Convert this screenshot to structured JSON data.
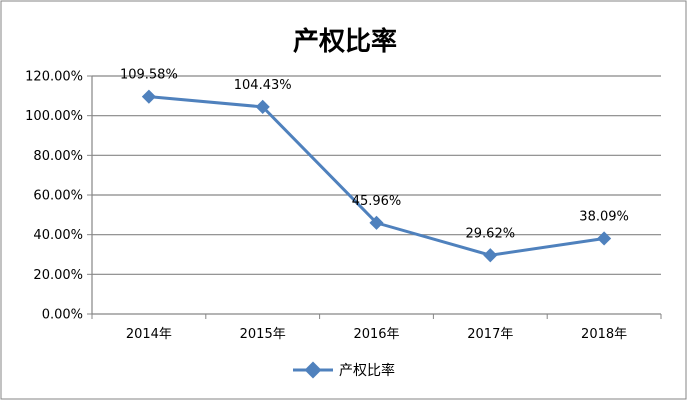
{
  "chart_data": {
    "type": "line",
    "title": "产权比率",
    "categories": [
      "2014年",
      "2015年",
      "2016年",
      "2017年",
      "2018年"
    ],
    "series": [
      {
        "name": "产权比率",
        "values": [
          109.58,
          104.43,
          45.96,
          29.62,
          38.09
        ],
        "labels": [
          "109.58%",
          "104.43%",
          "45.96%",
          "29.62%",
          "38.09%"
        ],
        "color": "#4F81BD"
      }
    ],
    "y_ticks": [
      "0.00%",
      "20.00%",
      "40.00%",
      "60.00%",
      "80.00%",
      "100.00%",
      "120.00%"
    ],
    "ylim": [
      0,
      120
    ],
    "grid": true,
    "legend": "bottom"
  }
}
